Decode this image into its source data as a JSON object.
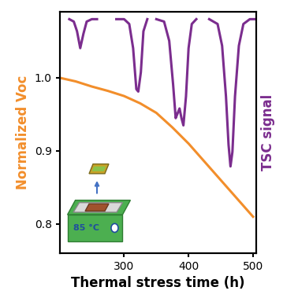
{
  "chart_data": {
    "type": "line",
    "xlabel": "Thermal stress time (h)",
    "annotation": "85 °C",
    "xlim": [
      200,
      505
    ],
    "xticks": [
      300,
      400,
      500
    ],
    "ylim": [
      0.76,
      1.09
    ],
    "yticks": [
      0.8,
      0.9,
      1.0
    ],
    "y2lim": [
      0,
      1
    ],
    "y2ticks": [],
    "series": [
      {
        "name": "Normalized Voc",
        "color": "#f28e2b",
        "axis": "y",
        "x": [
          200,
          225,
          250,
          275,
          300,
          325,
          350,
          375,
          400,
          425,
          450,
          475,
          500
        ],
        "values": [
          1.0,
          0.995,
          0.988,
          0.982,
          0.975,
          0.965,
          0.952,
          0.932,
          0.91,
          0.885,
          0.86,
          0.835,
          0.81
        ]
      },
      {
        "name": "TSC signal",
        "color": "#7b2d8e",
        "axis": "y2",
        "x": [
          215,
          222,
          227,
          232,
          237,
          242,
          250,
          258,
          265,
          288,
          300,
          308,
          314,
          319,
          322,
          326,
          330,
          336,
          343,
          350,
          362,
          370,
          376,
          380,
          383,
          386,
          389,
          392,
          396,
          400,
          405,
          412,
          420,
          432,
          445,
          452,
          458,
          462,
          465,
          468,
          472,
          478,
          485,
          495,
          505
        ],
        "values": [
          0.97,
          0.96,
          0.92,
          0.85,
          0.91,
          0.96,
          0.97,
          0.97,
          null,
          0.97,
          0.97,
          0.95,
          0.85,
          0.68,
          0.67,
          0.75,
          0.92,
          0.97,
          null,
          0.97,
          0.96,
          0.88,
          0.7,
          0.56,
          0.58,
          0.6,
          0.56,
          0.53,
          0.65,
          0.85,
          0.95,
          0.97,
          null,
          0.97,
          0.95,
          0.86,
          0.65,
          0.45,
          0.36,
          0.42,
          0.65,
          0.86,
          0.95,
          0.97,
          0.97
        ]
      }
    ]
  }
}
